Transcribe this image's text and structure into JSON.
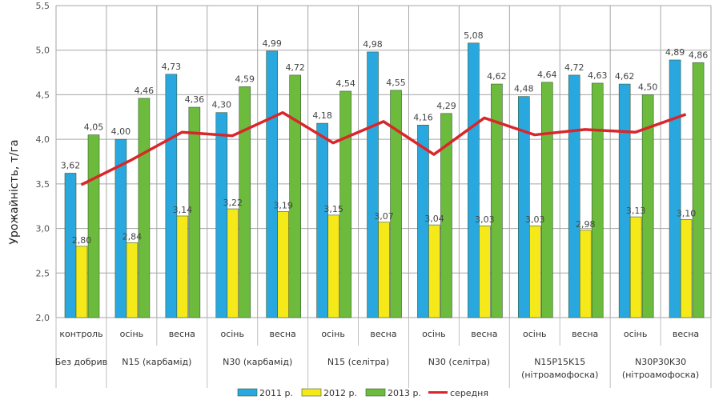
{
  "chart_data": {
    "type": "bar",
    "title": "",
    "ylabel": "Урожайність, т/га",
    "xlabel": "",
    "ylim": [
      2.0,
      5.5
    ],
    "yticks": [
      "2,0",
      "2,5",
      "3,0",
      "3,5",
      "4,0",
      "4,5",
      "5,0",
      "5,5"
    ],
    "grid": true,
    "legend_position": "bottom",
    "categories": [
      "контроль",
      "осінь",
      "весна",
      "осінь",
      "весна",
      "осінь",
      "весна",
      "осінь",
      "весна",
      "осінь",
      "весна",
      "осінь",
      "весна"
    ],
    "groups": [
      {
        "label": [
          "Без добрив"
        ],
        "span": 1
      },
      {
        "label": [
          "N15 (карбамід)"
        ],
        "span": 2
      },
      {
        "label": [
          "N30 (карбамід)"
        ],
        "span": 2
      },
      {
        "label": [
          "N15 (селітра)"
        ],
        "span": 2
      },
      {
        "label": [
          "N30 (селітра)"
        ],
        "span": 2
      },
      {
        "label": [
          "N15P15K15",
          "(нітроамофоска)"
        ],
        "span": 2
      },
      {
        "label": [
          "N30P30K30",
          "(нітроамофоска)"
        ],
        "span": 2
      }
    ],
    "series": [
      {
        "name": "2011 р.",
        "kind": "bar",
        "color": "#29a8e0",
        "values": [
          3.62,
          4.0,
          4.73,
          4.3,
          4.99,
          4.18,
          4.98,
          4.16,
          5.08,
          4.48,
          4.72,
          4.62,
          4.89
        ],
        "labels": [
          "3,62",
          "4,00",
          "4,73",
          "4,30",
          "4,99",
          "4,18",
          "4,98",
          "4,16",
          "5,08",
          "4,48",
          "4,72",
          "4,62",
          "4,89"
        ]
      },
      {
        "name": "2012 р.",
        "kind": "bar",
        "color": "#f5e91a",
        "values": [
          2.8,
          2.84,
          3.14,
          3.22,
          3.19,
          3.15,
          3.07,
          3.04,
          3.03,
          3.03,
          2.98,
          3.13,
          3.1
        ],
        "labels": [
          "2,80",
          "2,84",
          "3,14",
          "3,22",
          "3,19",
          "3,15",
          "3,07",
          "3,04",
          "3,03",
          "3,03",
          "2,98",
          "3,13",
          "3,10"
        ]
      },
      {
        "name": "2013 р.",
        "kind": "bar",
        "color": "#6cbb3c",
        "values": [
          4.05,
          4.46,
          4.36,
          4.59,
          4.72,
          4.54,
          4.55,
          4.29,
          4.62,
          4.64,
          4.63,
          4.5,
          4.86
        ],
        "labels": [
          "4,05",
          "4,46",
          "4,36",
          "4,59",
          "4,72",
          "4,54",
          "4,55",
          "4,29",
          "4,62",
          "4,64",
          "4,63",
          "4,50",
          "4,86"
        ]
      },
      {
        "name": "середня",
        "kind": "line",
        "color": "#d9262b",
        "values": [
          3.49,
          3.77,
          4.08,
          4.04,
          4.3,
          3.96,
          4.2,
          3.83,
          4.24,
          4.05,
          4.11,
          4.08,
          4.28
        ]
      }
    ]
  }
}
